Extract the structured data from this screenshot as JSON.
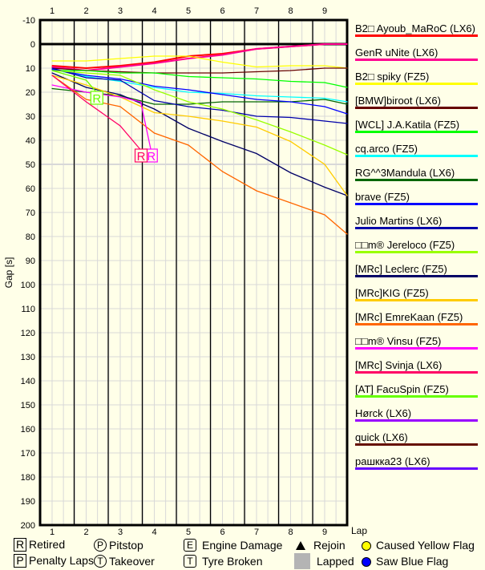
{
  "chart_data": {
    "type": "line",
    "xlabel": "Lap",
    "ylabel": "Gap [s]",
    "x_ticks": [
      "1",
      "2",
      "3",
      "4",
      "5",
      "6",
      "7",
      "8",
      "9"
    ],
    "y_ticks": [
      "-10",
      "0",
      "10",
      "20",
      "30",
      "40",
      "50",
      "60",
      "70",
      "80",
      "90",
      "100",
      "110",
      "120",
      "130",
      "140",
      "150",
      "160",
      "170",
      "180",
      "190",
      "200"
    ],
    "ylim": [
      -10,
      200
    ],
    "y_inverted": true,
    "grid": true,
    "legend_position": "right",
    "series": [
      {
        "name": "B2□ Ayoub_MaRoC (LX6)",
        "color": "#ff0000",
        "x": [
          1,
          2,
          3,
          4,
          5,
          6,
          7,
          8,
          9,
          9.66
        ],
        "y": [
          9,
          10,
          9,
          7.5,
          5,
          4,
          2,
          1,
          0,
          0
        ]
      },
      {
        "name": "GenR uNite (LX6)",
        "color": "#ff0090",
        "x": [
          1,
          2,
          3,
          4,
          5,
          6,
          7,
          8,
          9,
          9.66
        ],
        "y": [
          9.5,
          11,
          9.5,
          8,
          6,
          4.5,
          2,
          1,
          0,
          0
        ]
      },
      {
        "name": "B2□ spiky (FZ5)",
        "color": "#ffff00",
        "x": [
          1,
          2,
          3,
          4,
          5,
          6,
          7,
          8,
          9,
          9.66
        ],
        "y": [
          7,
          7,
          6,
          5,
          5,
          7.5,
          9.5,
          9,
          9,
          10
        ]
      },
      {
        "name": "[BMW]biroot (LX6)",
        "color": "#660000",
        "x": [
          1,
          2,
          3,
          4,
          5,
          6,
          7,
          8,
          9,
          9.66
        ],
        "y": [
          10,
          11,
          11.5,
          12,
          12,
          12,
          11.5,
          11,
          10,
          10
        ]
      },
      {
        "name": "[WCL] J.A.Katila (FZ5)",
        "color": "#00ff00",
        "x": [
          1,
          2,
          3,
          4,
          5,
          6,
          7,
          8,
          9,
          9.66
        ],
        "y": [
          11,
          11,
          12,
          12,
          13.5,
          14,
          14.5,
          15.5,
          16,
          18
        ]
      },
      {
        "name": "cq.arco (FZ5)",
        "color": "#00ffff",
        "x": [
          1,
          2,
          3,
          4,
          5,
          6,
          7,
          8,
          9,
          9.66
        ],
        "y": [
          10.5,
          13.5,
          15.5,
          18,
          20,
          20.5,
          21.5,
          22,
          22.5,
          24
        ]
      },
      {
        "name": "RG^^3Mandula (LX6)",
        "color": "#006600",
        "x": [
          1,
          2,
          3,
          4,
          5,
          6,
          7,
          8,
          9,
          9.66
        ],
        "y": [
          18.5,
          20,
          21.5,
          25,
          25,
          24,
          24,
          24,
          23,
          25
        ]
      },
      {
        "name": "brave (FZ5)",
        "color": "#0000ff",
        "x": [
          1,
          2,
          3,
          4,
          5,
          6,
          7,
          8,
          9,
          9.66
        ],
        "y": [
          10.5,
          13,
          14.5,
          17.5,
          19,
          21,
          23,
          24,
          26,
          29
        ]
      },
      {
        "name": "Julio Martins (LX6)",
        "color": "#0000aa",
        "x": [
          1,
          2,
          3,
          4,
          5,
          6,
          7,
          8,
          9,
          9.66
        ],
        "y": [
          10,
          14,
          15,
          23.5,
          26,
          27.5,
          30,
          30.5,
          32,
          33
        ]
      },
      {
        "name": "□□m® Jereloco (FZ5)",
        "color": "#99ff00",
        "x": [
          1,
          2,
          3,
          4,
          5,
          6,
          7,
          8,
          9,
          9.66
        ],
        "y": [
          11,
          12,
          13,
          19,
          24,
          27,
          31.5,
          36.5,
          42,
          46
        ]
      },
      {
        "name": "[MRc] Leclerc (FZ5)",
        "color": "#000066",
        "x": [
          1,
          2,
          3,
          4,
          5,
          6,
          7,
          8,
          9,
          9.66
        ],
        "y": [
          12,
          18,
          21,
          27,
          35,
          40.5,
          45.5,
          53.5,
          59.5,
          63
        ]
      },
      {
        "name": "[MRc]KIG (FZ5)",
        "color": "#ffcc00",
        "x": [
          1,
          2,
          3,
          4,
          5,
          6,
          7,
          8,
          9,
          9.66
        ],
        "y": [
          13,
          17,
          22,
          28.5,
          30,
          32,
          34.5,
          40.5,
          50,
          63
        ]
      },
      {
        "name": "[MRc] EmreKaan (FZ5)",
        "color": "#ff6600",
        "x": [
          1,
          2,
          3,
          4,
          5,
          6,
          7,
          8,
          9,
          9.66
        ],
        "y": [
          13,
          23,
          26,
          37,
          42,
          53,
          61,
          66,
          71,
          79
        ]
      },
      {
        "name": "□□m® Vinsu (FZ5)",
        "color": "#ff00ff",
        "x": [
          1,
          2,
          3,
          3.6,
          3.9
        ],
        "y": [
          17,
          20,
          22,
          24,
          44
        ],
        "retired": true
      },
      {
        "name": "[MRc] Svinja (LX6)",
        "color": "#ff0066",
        "x": [
          1,
          2,
          3,
          3.6
        ],
        "y": [
          13,
          24,
          34,
          44
        ],
        "retired": true
      },
      {
        "name": "[AT] FacuSpin (FZ5)",
        "color": "#66ff00",
        "x": [
          1,
          2,
          2.3
        ],
        "y": [
          11,
          15,
          20
        ],
        "retired": true
      },
      {
        "name": "Hørck (LX6)",
        "color": "#9900ff",
        "x": [],
        "y": []
      },
      {
        "name": "quick (LX6)",
        "color": "#661100",
        "x": [],
        "y": []
      },
      {
        "name": "рашкка23 (LX6)",
        "color": "#6600ff",
        "x": [],
        "y": []
      }
    ]
  },
  "key": {
    "retired": {
      "symbol": "R",
      "label": "Retired"
    },
    "penalty": {
      "symbol": "P",
      "label": "Penalty Laps"
    },
    "pitstop": {
      "symbol": "P",
      "label": "Pitstop"
    },
    "takeover": {
      "symbol": "T",
      "label": "Takeover"
    },
    "engine": {
      "symbol": "E",
      "label": "Engine Damage"
    },
    "tyre": {
      "symbol": "T",
      "label": "Tyre Broken"
    },
    "rejoin": {
      "label": "Rejoin"
    },
    "lapped": {
      "label": "Lapped"
    },
    "yellow": {
      "label": "Caused Yellow Flag",
      "color": "#ffff00"
    },
    "blue": {
      "label": "Saw Blue Flag",
      "color": "#0000ff"
    }
  }
}
